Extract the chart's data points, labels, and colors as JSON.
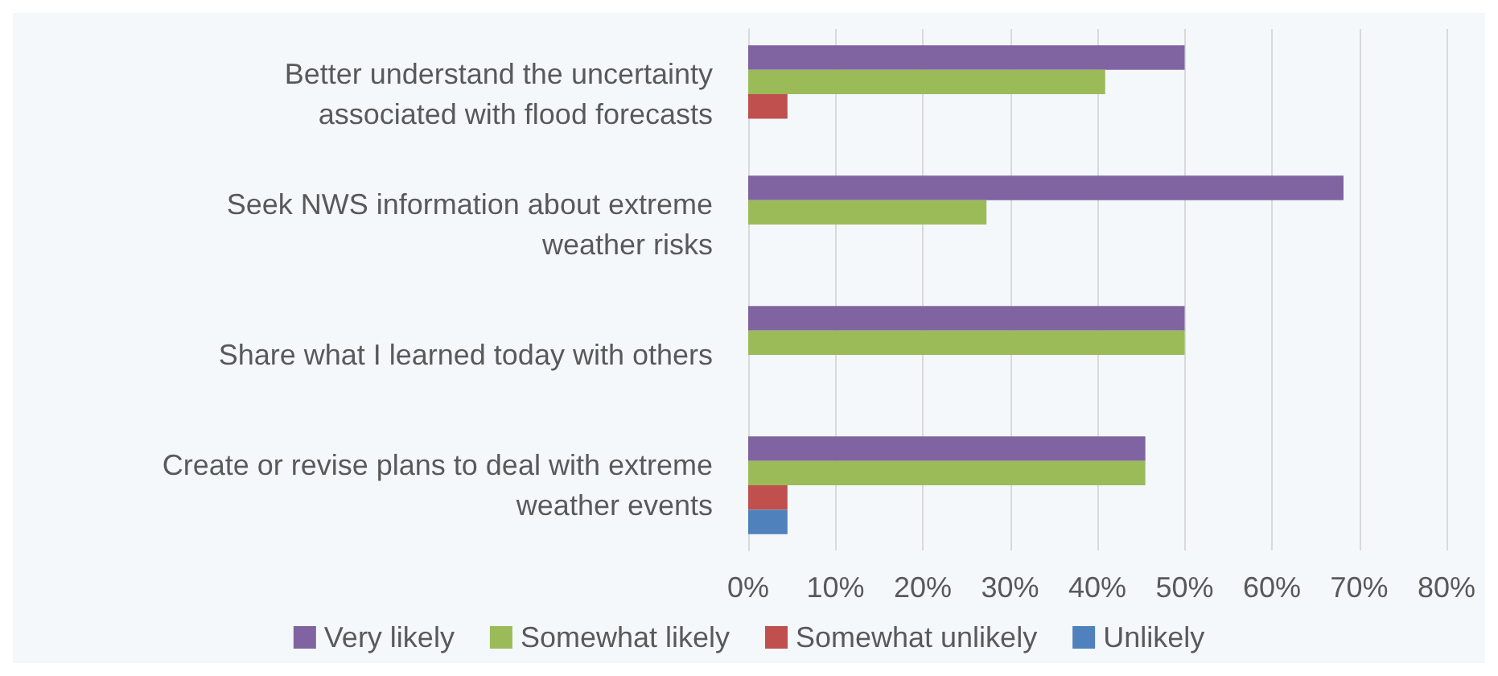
{
  "chart_data": {
    "type": "bar",
    "orientation": "horizontal",
    "categories": [
      "Better understand the uncertainty\nassociated with flood forecasts",
      "Seek NWS information about extreme\nweather risks",
      "Share what I learned today with others",
      "Create or revise plans to deal with extreme\nweather events"
    ],
    "series": [
      {
        "name": "Very likely",
        "color": "#8064a2",
        "values": [
          50,
          68.2,
          50,
          45.5
        ]
      },
      {
        "name": "Somewhat likely",
        "color": "#9bbb59",
        "values": [
          40.9,
          27.3,
          50,
          45.5
        ]
      },
      {
        "name": "Somewhat unlikely",
        "color": "#c0504d",
        "values": [
          4.5,
          null,
          null,
          4.5
        ]
      },
      {
        "name": "Unlikely",
        "color": "#4f81bd",
        "values": [
          null,
          null,
          null,
          4.5
        ]
      }
    ],
    "xlim": [
      0,
      80
    ],
    "xticks": [
      {
        "value": 0,
        "label": "0%"
      },
      {
        "value": 10,
        "label": "10%"
      },
      {
        "value": 20,
        "label": "20%"
      },
      {
        "value": 30,
        "label": "30%"
      },
      {
        "value": 40,
        "label": "40%"
      },
      {
        "value": 50,
        "label": "50%"
      },
      {
        "value": 60,
        "label": "60%"
      },
      {
        "value": 70,
        "label": "70%"
      },
      {
        "value": 80,
        "label": "80%"
      }
    ],
    "grid": "x",
    "legend": "bottom"
  }
}
